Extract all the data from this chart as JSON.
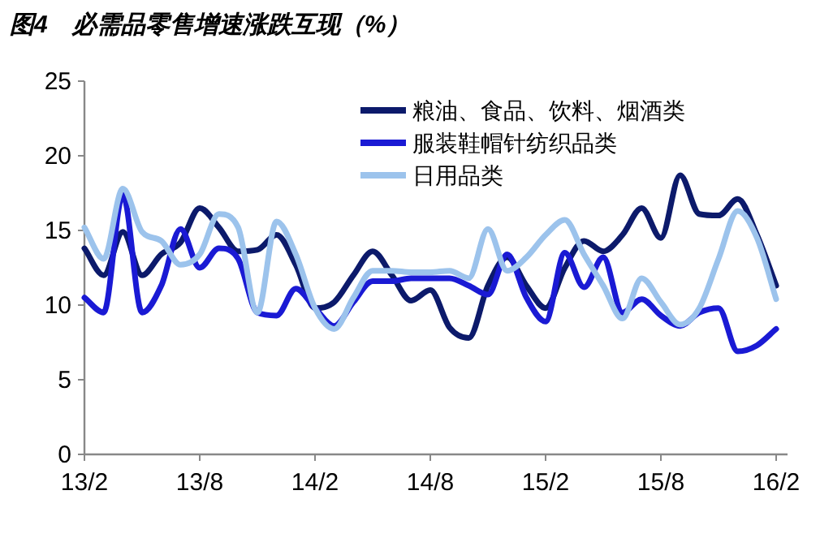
{
  "chart_data": {
    "type": "line",
    "title": "图4　必需品零售增速涨跌互现（%）",
    "categories": [
      "13/2",
      null,
      null,
      null,
      null,
      null,
      "13/8",
      null,
      null,
      null,
      null,
      null,
      "14/2",
      null,
      null,
      null,
      null,
      null,
      "14/8",
      null,
      null,
      null,
      null,
      null,
      "15/2",
      null,
      null,
      null,
      null,
      null,
      "15/8",
      null,
      null,
      null,
      null,
      null,
      "16/2"
    ],
    "series": [
      {
        "name": "粮油、食品、饮料、烟酒类",
        "color": "#0c1a6b",
        "values": [
          13.8,
          12.0,
          14.9,
          12.0,
          13.4,
          14.2,
          16.5,
          15.2,
          13.6,
          13.7,
          14.7,
          12.7,
          9.8,
          10.2,
          12.0,
          13.6,
          12.0,
          10.3,
          11.0,
          8.5,
          7.8,
          11.3,
          13.2,
          11.3,
          9.8,
          12.5,
          14.3,
          13.6,
          14.7,
          16.5,
          14.5,
          18.7,
          16.1,
          16.0,
          17.1,
          14.7,
          11.3
        ]
      },
      {
        "name": "服装鞋帽针纺织品类",
        "color": "#1a1ad4",
        "values": [
          10.5,
          9.5,
          17.4,
          9.5,
          11.3,
          15.1,
          12.5,
          13.8,
          13.1,
          9.5,
          9.3,
          11.1,
          9.8,
          8.6,
          10.2,
          11.6,
          11.6,
          11.8,
          11.8,
          11.8,
          11.3,
          10.7,
          13.4,
          10.5,
          8.9,
          13.5,
          11.2,
          13.2,
          9.5,
          10.4,
          9.3,
          8.6,
          9.5,
          9.8,
          6.9,
          7.3,
          8.4
        ]
      },
      {
        "name": "日用品类",
        "color": "#9cc3ec",
        "values": [
          15.2,
          13.1,
          17.8,
          14.9,
          14.3,
          12.7,
          13.4,
          16.1,
          15.2,
          9.5,
          15.6,
          13.4,
          9.8,
          8.4,
          10.5,
          12.3,
          12.3,
          12.2,
          12.2,
          12.3,
          11.8,
          15.1,
          12.3,
          13.2,
          14.7,
          15.7,
          13.4,
          11.3,
          9.1,
          11.8,
          10.2,
          8.7,
          9.8,
          13.1,
          16.3,
          14.5,
          10.4
        ]
      }
    ],
    "ylim": [
      0,
      25
    ],
    "yticks": [
      0,
      5,
      10,
      15,
      20,
      25
    ],
    "grid": false,
    "legend": "top right",
    "marker": "none",
    "line_style": "solid"
  }
}
